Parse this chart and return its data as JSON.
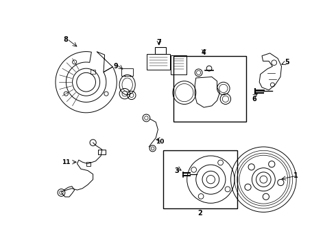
{
  "background_color": "#ffffff",
  "line_color": "#000000",
  "figsize": [
    4.9,
    3.6
  ],
  "dpi": 100
}
